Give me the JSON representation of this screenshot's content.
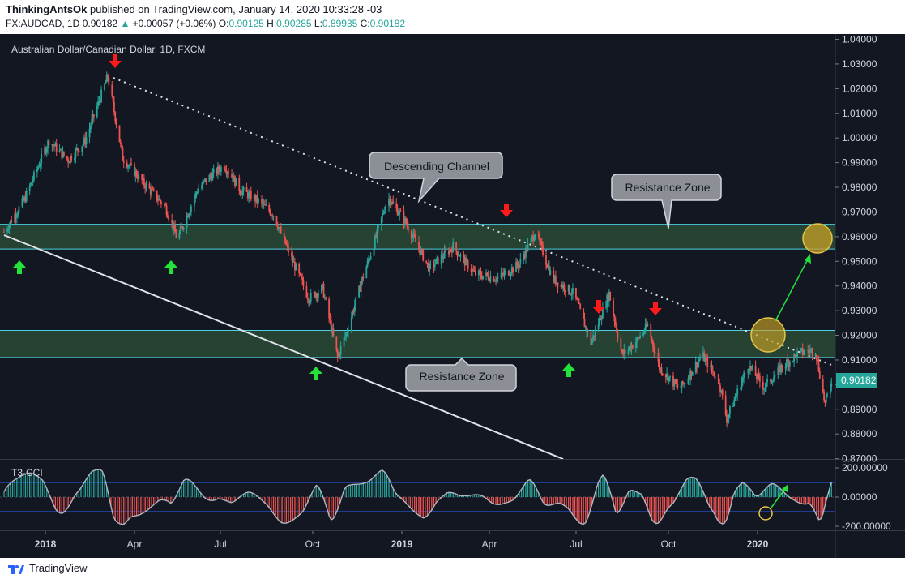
{
  "header": {
    "publisher": "ThinkingAntsOk",
    "published_text": "published on TradingView.com, January 14, 2020 10:33:28 -03",
    "symbol_line": "FX:AUDCAD, 1D",
    "last": "0.90182",
    "change": "+0.00057 (+0.06%)",
    "o_label": "O:",
    "o": "0.90125",
    "h_label": "H:",
    "h": "0.90285",
    "l_label": "L:",
    "l": "0.89935",
    "c_label": "C:",
    "c": "0.90182"
  },
  "footer": {
    "brand": "TradingView"
  },
  "colors": {
    "background": "#131722",
    "up": "#26a69a",
    "down": "#ef5350",
    "zone_fill": "#2a4a35",
    "zone_line": "#4dd0e1",
    "arrow_up": "#22e33a",
    "arrow_down": "#ff1a1a",
    "target": "#c9a227",
    "last_price_tag": "#26a69a"
  },
  "chart_data": [
    {
      "type": "candlestick",
      "title": "Australian Dollar/Canadian Dollar, 1D, FXCM",
      "ylim": [
        0.87,
        1.04
      ],
      "yticks": [
        "1.04000",
        "1.03000",
        "1.02000",
        "1.01000",
        "1.00000",
        "0.99000",
        "0.98000",
        "0.97000",
        "0.96000",
        "0.95000",
        "0.94000",
        "0.93000",
        "0.92000",
        "0.91000",
        "0.90000",
        "0.89000",
        "0.88000",
        "0.87000"
      ],
      "xticks": [
        "2018",
        "Apr",
        "Jul",
        "Oct",
        "2019",
        "Apr",
        "Jul",
        "Oct",
        "2020"
      ],
      "last_price_label": "0.90182",
      "price_path": [
        [
          "2017-12-01",
          0.962
        ],
        [
          "2017-12-20",
          0.975
        ],
        [
          "2018-01-12",
          0.999
        ],
        [
          "2018-01-30",
          0.991
        ],
        [
          "2018-02-15",
          0.999
        ],
        [
          "2018-03-08",
          1.025
        ],
        [
          "2018-03-22",
          0.992
        ],
        [
          "2018-04-12",
          0.981
        ],
        [
          "2018-05-01",
          0.972
        ],
        [
          "2018-05-12",
          0.959
        ],
        [
          "2018-05-31",
          0.979
        ],
        [
          "2018-06-08",
          0.983
        ],
        [
          "2018-06-25",
          0.989
        ],
        [
          "2018-07-10",
          0.979
        ],
        [
          "2018-07-25",
          0.975
        ],
        [
          "2018-08-10",
          0.969
        ],
        [
          "2018-08-25",
          0.953
        ],
        [
          "2018-09-12",
          0.935
        ],
        [
          "2018-09-25",
          0.939
        ],
        [
          "2018-10-09",
          0.911
        ],
        [
          "2018-10-18",
          0.922
        ],
        [
          "2018-11-02",
          0.944
        ],
        [
          "2018-11-12",
          0.957
        ],
        [
          "2018-11-25",
          0.976
        ],
        [
          "2018-12-10",
          0.967
        ],
        [
          "2019-01-03",
          0.947
        ],
        [
          "2019-01-25",
          0.956
        ],
        [
          "2019-02-14",
          0.945
        ],
        [
          "2019-03-08",
          0.943
        ],
        [
          "2019-03-28",
          0.949
        ],
        [
          "2019-04-12",
          0.962
        ],
        [
          "2019-04-28",
          0.943
        ],
        [
          "2019-05-18",
          0.937
        ],
        [
          "2019-06-03",
          0.917
        ],
        [
          "2019-06-20",
          0.937
        ],
        [
          "2019-07-02",
          0.912
        ],
        [
          "2019-07-16",
          0.918
        ],
        [
          "2019-07-26",
          0.924
        ],
        [
          "2019-08-06",
          0.907
        ],
        [
          "2019-08-25",
          0.898
        ],
        [
          "2019-09-15",
          0.912
        ],
        [
          "2019-10-01",
          0.901
        ],
        [
          "2019-10-08",
          0.886
        ],
        [
          "2019-10-28",
          0.908
        ],
        [
          "2019-11-12",
          0.899
        ],
        [
          "2019-11-28",
          0.907
        ],
        [
          "2019-12-15",
          0.913
        ],
        [
          "2019-12-30",
          0.914
        ],
        [
          "2020-01-08",
          0.892
        ],
        [
          "2020-01-14",
          0.902
        ]
      ],
      "zones": [
        {
          "low": 0.955,
          "high": 0.965
        },
        {
          "low": 0.911,
          "high": 0.922
        }
      ],
      "annotations": {
        "channel": "Descending Channel",
        "zone_upper": "Resistance Zone",
        "zone_lower": "Resistance Zone"
      }
    },
    {
      "type": "line",
      "title": "T3-CCI",
      "ylim": [
        -200,
        200
      ],
      "yticks": [
        "200.00000",
        "0.00000",
        "-200.00000"
      ],
      "levels": [
        100,
        -100
      ]
    }
  ]
}
